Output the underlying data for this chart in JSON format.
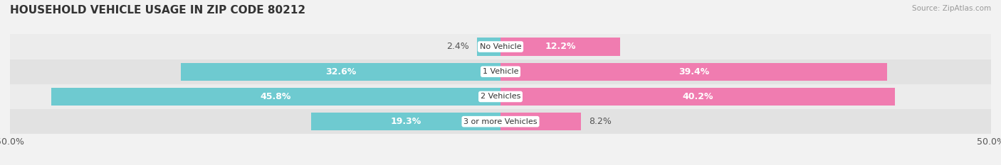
{
  "title": "HOUSEHOLD VEHICLE USAGE IN ZIP CODE 80212",
  "source": "Source: ZipAtlas.com",
  "categories": [
    "No Vehicle",
    "1 Vehicle",
    "2 Vehicles",
    "3 or more Vehicles"
  ],
  "owner_values": [
    2.4,
    32.6,
    45.8,
    19.3
  ],
  "renter_values": [
    12.2,
    39.4,
    40.2,
    8.2
  ],
  "owner_color": "#6ecad0",
  "renter_color": "#f07cb0",
  "axis_limit": 50.0,
  "bar_height": 0.72,
  "background_color": "#f2f2f2",
  "row_bg_light": "#ececec",
  "row_bg_dark": "#e2e2e2",
  "label_fontsize": 9,
  "title_fontsize": 11,
  "category_fontsize": 8,
  "legend_fontsize": 9,
  "axis_label_fontsize": 9
}
